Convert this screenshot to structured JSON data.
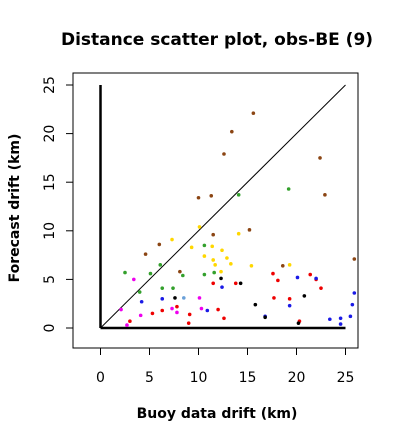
{
  "chart_data": {
    "type": "scatter",
    "title": "Distance scatter plot, obs-BE (9)",
    "xlabel": "Buoy data drift (km)",
    "ylabel": "Forecast drift (km)",
    "xlim": [
      -2,
      26.5
    ],
    "ylim": [
      -2,
      26.5
    ],
    "x_ticks": [
      0,
      5,
      10,
      15,
      20,
      25
    ],
    "y_ticks": [
      0,
      5,
      10,
      15,
      20,
      25
    ],
    "grid": false,
    "legend": "none",
    "identity_line": {
      "from": [
        0,
        0
      ],
      "to": [
        25,
        25
      ]
    },
    "reference_axes": {
      "vertical": {
        "x": 0,
        "y_from": 0,
        "y_to": 25
      },
      "horizontal": {
        "y": 0,
        "x_from": 0,
        "x_to": 25
      }
    },
    "series": [
      {
        "color": "#8b4513",
        "points": [
          [
            4.6,
            7.6
          ],
          [
            6.0,
            8.6
          ],
          [
            8.1,
            5.8
          ],
          [
            10.0,
            13.4
          ],
          [
            11.3,
            13.6
          ],
          [
            12.6,
            17.9
          ],
          [
            13.4,
            20.2
          ],
          [
            15.6,
            22.1
          ],
          [
            15.2,
            10.1
          ],
          [
            18.6,
            6.4
          ],
          [
            22.4,
            17.5
          ],
          [
            22.9,
            13.7
          ],
          [
            25.9,
            7.1
          ],
          [
            11.5,
            9.6
          ]
        ]
      },
      {
        "color": "#33a02c",
        "points": [
          [
            2.5,
            5.7
          ],
          [
            4.0,
            3.7
          ],
          [
            5.1,
            5.6
          ],
          [
            6.1,
            6.5
          ],
          [
            6.3,
            4.1
          ],
          [
            7.4,
            4.1
          ],
          [
            8.4,
            5.4
          ],
          [
            10.6,
            8.5
          ],
          [
            10.6,
            5.5
          ],
          [
            11.6,
            5.7
          ],
          [
            14.1,
            13.7
          ],
          [
            19.2,
            14.3
          ]
        ]
      },
      {
        "color": "#ffd700",
        "points": [
          [
            7.3,
            9.1
          ],
          [
            9.3,
            8.3
          ],
          [
            10.1,
            10.4
          ],
          [
            10.6,
            7.4
          ],
          [
            11.5,
            7.0
          ],
          [
            11.7,
            6.5
          ],
          [
            11.4,
            8.4
          ],
          [
            12.4,
            8.0
          ],
          [
            12.9,
            7.2
          ],
          [
            13.3,
            6.6
          ],
          [
            12.3,
            5.8
          ],
          [
            14.1,
            9.7
          ],
          [
            15.4,
            6.4
          ],
          [
            19.3,
            6.5
          ]
        ]
      },
      {
        "color": "#ee0000",
        "points": [
          [
            3.0,
            0.7
          ],
          [
            5.3,
            1.5
          ],
          [
            6.3,
            1.8
          ],
          [
            7.8,
            2.2
          ],
          [
            9.1,
            1.4
          ],
          [
            11.5,
            4.6
          ],
          [
            12.0,
            1.9
          ],
          [
            12.6,
            1.0
          ],
          [
            13.8,
            4.6
          ],
          [
            17.6,
            5.6
          ],
          [
            17.7,
            3.1
          ],
          [
            19.3,
            3.0
          ],
          [
            20.3,
            0.7
          ],
          [
            21.4,
            5.5
          ],
          [
            22.0,
            5.0
          ],
          [
            22.5,
            4.1
          ],
          [
            18.1,
            4.9
          ],
          [
            9.0,
            0.5
          ]
        ]
      },
      {
        "color": "#1a1ae6",
        "points": [
          [
            4.2,
            2.7
          ],
          [
            6.3,
            3.0
          ],
          [
            10.9,
            1.8
          ],
          [
            12.4,
            4.2
          ],
          [
            16.8,
            1.2
          ],
          [
            19.3,
            2.3
          ],
          [
            20.1,
            5.2
          ],
          [
            22.0,
            5.1
          ],
          [
            23.4,
            0.9
          ],
          [
            24.5,
            1.0
          ],
          [
            25.5,
            1.2
          ],
          [
            25.7,
            2.4
          ],
          [
            25.9,
            3.6
          ],
          [
            24.5,
            0.4
          ]
        ]
      },
      {
        "color": "#ee00ee",
        "points": [
          [
            2.1,
            1.9
          ],
          [
            2.7,
            0.3
          ],
          [
            3.4,
            5.0
          ],
          [
            4.1,
            1.3
          ],
          [
            7.3,
            2.0
          ],
          [
            10.1,
            3.1
          ],
          [
            10.3,
            2.0
          ],
          [
            7.8,
            1.6
          ]
        ]
      },
      {
        "color": "#000000",
        "points": [
          [
            7.6,
            3.1
          ],
          [
            12.3,
            5.1
          ],
          [
            14.3,
            4.6
          ],
          [
            15.8,
            2.4
          ],
          [
            20.2,
            0.5
          ],
          [
            20.8,
            3.3
          ],
          [
            16.8,
            1.1
          ]
        ]
      },
      {
        "color": "#6aa0d8",
        "points": [
          [
            8.5,
            3.1
          ]
        ]
      }
    ]
  }
}
